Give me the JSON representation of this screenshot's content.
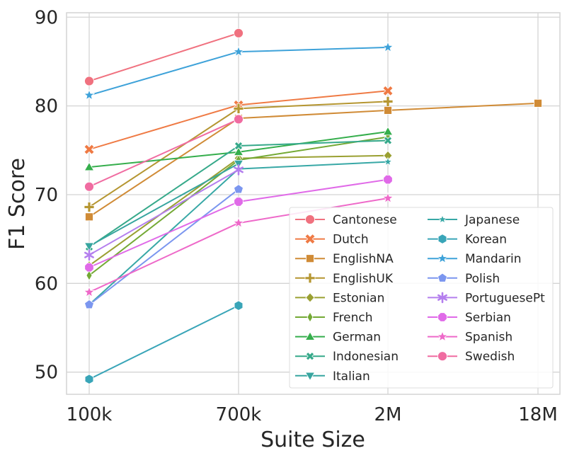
{
  "chart_data": {
    "type": "line",
    "xlabel": "Suite Size",
    "ylabel": "F1 Score",
    "categories": [
      "100k",
      "700k",
      "2M",
      "18M"
    ],
    "ylim": [
      47.5,
      90.5
    ],
    "yticks": [
      "50",
      "60",
      "70",
      "80",
      "90"
    ],
    "grid": true,
    "legend_placement": "lower-right",
    "legend_columns": 2,
    "series": [
      {
        "name": "Cantonese",
        "color": "#f0717f",
        "marker": "circle",
        "values": [
          82.8,
          88.2,
          null,
          null
        ]
      },
      {
        "name": "Dutch",
        "color": "#ef7a44",
        "marker": "x",
        "values": [
          75.1,
          80.1,
          81.7,
          null
        ]
      },
      {
        "name": "EnglishNA",
        "color": "#d08b36",
        "marker": "square",
        "values": [
          67.5,
          78.6,
          79.5,
          80.3
        ]
      },
      {
        "name": "EnglishUK",
        "color": "#b59631",
        "marker": "plus",
        "values": [
          68.6,
          79.7,
          80.5,
          null
        ]
      },
      {
        "name": "Estonian",
        "color": "#9aa032",
        "marker": "diamond",
        "values": [
          62.0,
          74.1,
          74.4,
          null
        ]
      },
      {
        "name": "French",
        "color": "#74a935",
        "marker": "thin-diamond",
        "values": [
          60.9,
          73.9,
          76.5,
          null
        ]
      },
      {
        "name": "German",
        "color": "#35ae4c",
        "marker": "triangle-up",
        "values": [
          73.1,
          74.8,
          77.1,
          null
        ]
      },
      {
        "name": "Indonesian",
        "color": "#36a98a",
        "marker": "x-small",
        "values": [
          64.1,
          75.5,
          76.1,
          null
        ]
      },
      {
        "name": "Italian",
        "color": "#37a59f",
        "marker": "triangle-down",
        "values": [
          64.2,
          73.5,
          null,
          null
        ]
      },
      {
        "name": "Japanese",
        "color": "#38a8a6",
        "marker": "star-small",
        "values": [
          57.6,
          72.9,
          73.7,
          null
        ]
      },
      {
        "name": "Korean",
        "color": "#39a5b8",
        "marker": "hexagon",
        "values": [
          49.2,
          57.5,
          null,
          null
        ]
      },
      {
        "name": "Mandarin",
        "color": "#3ea2d9",
        "marker": "star",
        "values": [
          81.2,
          86.1,
          86.6,
          null
        ]
      },
      {
        "name": "Polish",
        "color": "#7b96ef",
        "marker": "pentagon",
        "values": [
          57.6,
          70.6,
          null,
          null
        ]
      },
      {
        "name": "PortuguesePt",
        "color": "#b47fee",
        "marker": "asterisk",
        "values": [
          63.2,
          72.8,
          null,
          null
        ]
      },
      {
        "name": "Serbian",
        "color": "#e06ae8",
        "marker": "octagon",
        "values": [
          61.8,
          69.2,
          71.7,
          null
        ]
      },
      {
        "name": "Spanish",
        "color": "#ee69c9",
        "marker": "star",
        "values": [
          59.0,
          66.8,
          69.6,
          null
        ]
      },
      {
        "name": "Swedish",
        "color": "#f06ca1",
        "marker": "circle",
        "values": [
          70.9,
          78.5,
          null,
          null
        ]
      }
    ]
  }
}
